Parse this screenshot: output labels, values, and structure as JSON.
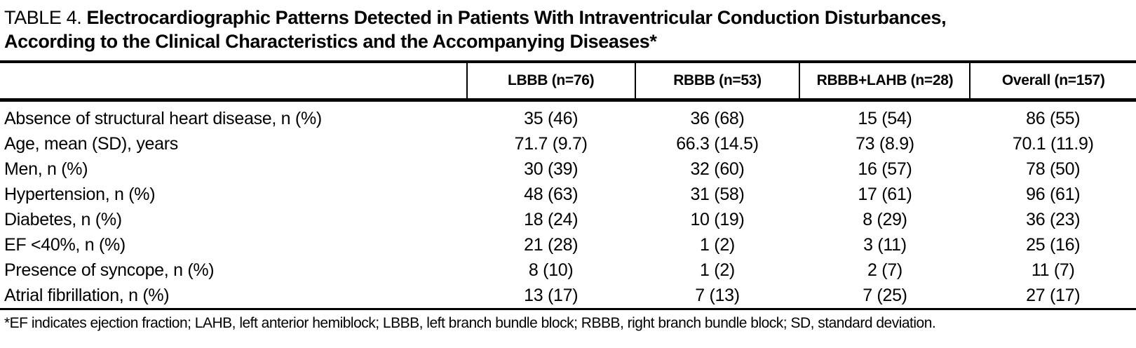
{
  "title": {
    "prefix": "TABLE 4. ",
    "line1_bold": "Electrocardiographic Patterns Detected in Patients With Intraventricular Conduction Disturbances,",
    "line2_bold": "According to the Clinical Characteristics and the Accompanying Diseases",
    "asterisk": "*"
  },
  "table": {
    "columns": [
      "LBBB (n=76)",
      "RBBB (n=53)",
      "RBBB+LAHB (n=28)",
      "Overall (n=157)"
    ],
    "rows": [
      {
        "label": "Absence of structural heart disease, n (%)",
        "values": [
          "35 (46)",
          "36 (68)",
          "15 (54)",
          "86 (55)"
        ]
      },
      {
        "label": "Age, mean (SD), years",
        "values": [
          "71.7 (9.7)",
          "66.3 (14.5)",
          "73 (8.9)",
          "70.1 (11.9)"
        ]
      },
      {
        "label": "Men, n (%)",
        "values": [
          "30 (39)",
          "32 (60)",
          "16 (57)",
          "78 (50)"
        ]
      },
      {
        "label": "Hypertension, n (%)",
        "values": [
          "48 (63)",
          "31 (58)",
          "17 (61)",
          "96 (61)"
        ]
      },
      {
        "label": "Diabetes, n (%)",
        "values": [
          "18 (24)",
          "10 (19)",
          "8 (29)",
          "36 (23)"
        ]
      },
      {
        "label": "EF <40%, n (%)",
        "values": [
          "21 (28)",
          "1 (2)",
          "3 (11)",
          "25 (16)"
        ]
      },
      {
        "label": "Presence of syncope, n (%)",
        "values": [
          "8 (10)",
          "1 (2)",
          "2 (7)",
          "11 (7)"
        ]
      },
      {
        "label": "Atrial fibrillation, n (%)",
        "values": [
          "13 (17)",
          "7 (13)",
          "7 (25)",
          "27 (17)"
        ]
      }
    ]
  },
  "footnote": "*EF indicates ejection fraction; LAHB, left anterior hemiblock; LBBB, left branch bundle block; RBBB, right branch bundle block; SD, standard deviation.",
  "colors": {
    "text": "#000000",
    "background": "#ffffff",
    "rule": "#000000"
  }
}
